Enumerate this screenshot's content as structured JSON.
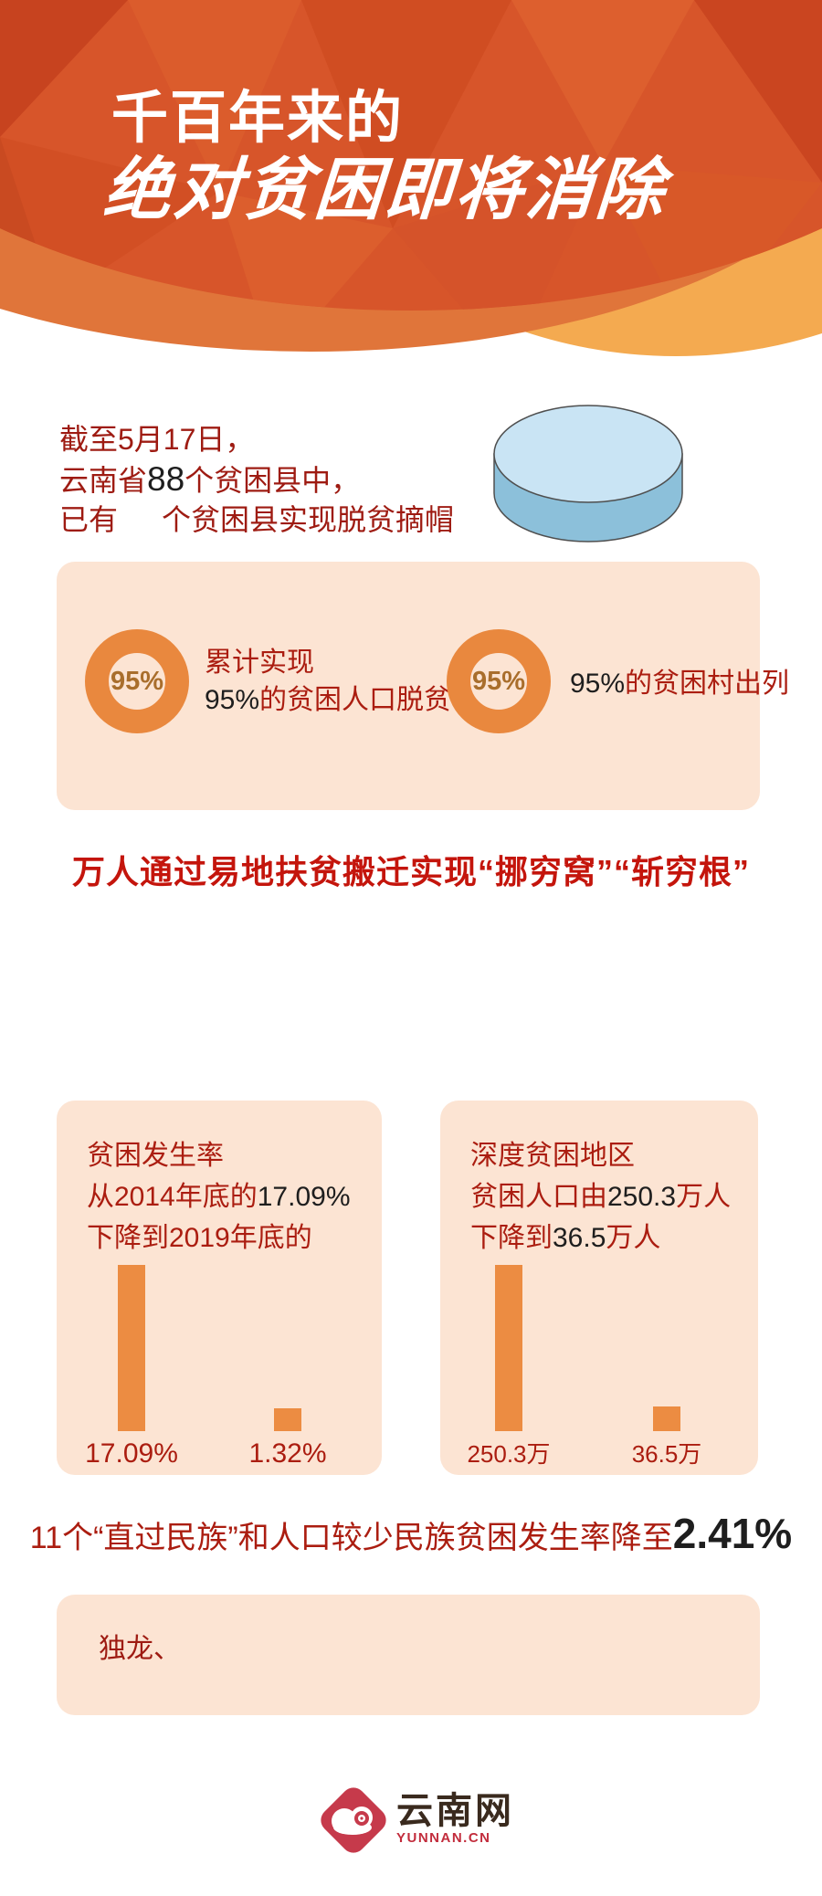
{
  "header": {
    "title_line1": "千百年来的",
    "title_line2": "绝对贫困即将消除",
    "colors": {
      "base": "#d7552a",
      "dark_band": "#e0753a",
      "light_band": "#f4aa50"
    }
  },
  "intro": {
    "line1": "截至5月17日，",
    "line2_prefix": "云南省",
    "line2_number": "88",
    "line2_suffix": "个贫困县中，",
    "line3_prefix": "已有",
    "line3_suffix": "个贫困县实现脱贫摘帽",
    "cylinder_color_top": "#c9e4f4",
    "cylinder_color_side": "#8cc0da"
  },
  "stats_box": {
    "items": [
      {
        "ring_value": "95%",
        "label_line1": "累计实现",
        "label_line2_number": "95%",
        "label_line2_suffix": "的贫困人口脱贫"
      },
      {
        "ring_value": "95%",
        "label_number": "95%",
        "label_suffix": "的贫困村出列"
      }
    ],
    "ring_color": "#e9883e"
  },
  "slogan": "万人通过易地扶贫搬迁实现“挪穷窝”“斩穷根”",
  "chart_data": [
    {
      "type": "bar",
      "title": {
        "line1": "贫困发生率",
        "line2_prefix": "从2014年底的",
        "line2_value": "17.09%",
        "line3_prefix": "下降到2019年底的"
      },
      "values": [
        17.09,
        1.32
      ],
      "bar_labels": [
        "17.09%",
        "1.32%"
      ],
      "unit": "%",
      "bar_color": "#ec8c42",
      "ylim": [
        0,
        17.09
      ],
      "grid": false,
      "legend": "none"
    },
    {
      "type": "bar",
      "title": {
        "line1": "深度贫困地区",
        "line2_prefix": "贫困人口由",
        "line2_value": "250.3",
        "line2_suffix": "万人",
        "line3_prefix": "下降到",
        "line3_value": "36.5",
        "line3_suffix": "万人"
      },
      "values": [
        250.3,
        36.5
      ],
      "bar_labels": [
        "250.3万",
        "36.5万"
      ],
      "unit": "万人",
      "bar_color": "#ec8c42",
      "ylim": [
        0,
        250.3
      ],
      "grid": false,
      "legend": "none"
    }
  ],
  "minority_line": {
    "prefix": "11个“直过民族”和人口较少民族贫困发生率降至",
    "value": "2.41%"
  },
  "ethnic_box": {
    "text": "独龙、"
  },
  "footer": {
    "site_name": "云南网",
    "site_url": "YUNNAN.CN",
    "logo_color": "#c63a4b"
  }
}
